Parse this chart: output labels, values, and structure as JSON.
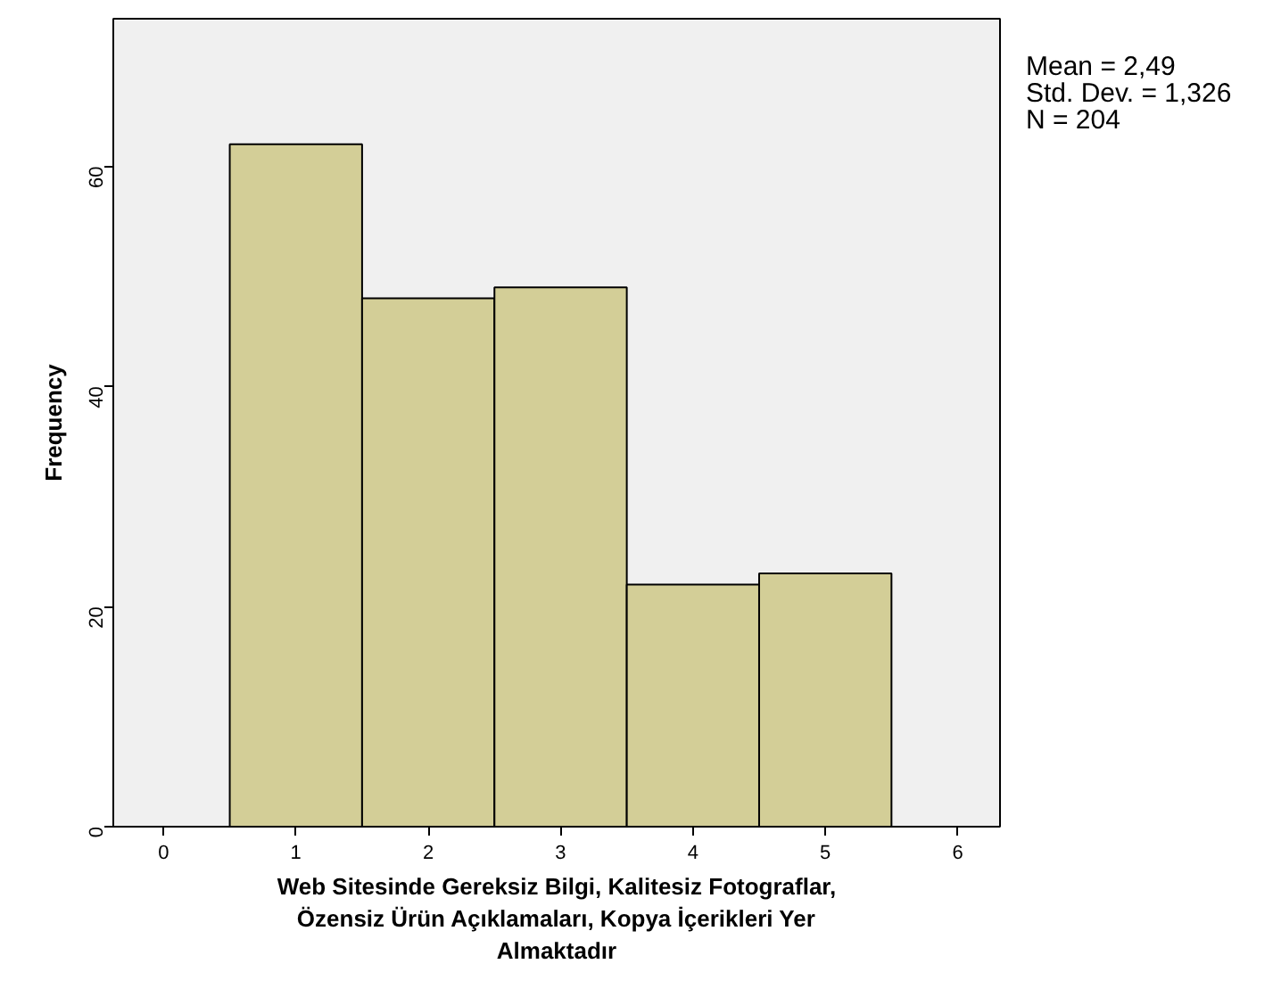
{
  "chart_data": {
    "type": "histogram",
    "xlabel": "Web Sitesinde Gereksiz Bilgi, Kalitesiz Fotograflar,\nÖzensiz Ürün Açıklamaları, Kopya İçerikleri Yer\nAlmaktadır",
    "ylabel": "Frequency",
    "bins": [
      0.5,
      1.5,
      2.5,
      3.5,
      4.5,
      5.5
    ],
    "values": [
      62,
      48,
      49,
      22,
      23
    ],
    "color": "#d3ce97",
    "xlim": [
      -0.38,
      6.32
    ],
    "ylim": [
      0,
      73.4
    ],
    "xticks": [
      0,
      1,
      2,
      3,
      4,
      5,
      6
    ],
    "yticks": [
      0,
      20,
      40,
      60
    ],
    "grid": false,
    "legend": false,
    "annotations": [
      "Mean = 2,49",
      "Std. Dev. = 1,326",
      "N = 204"
    ]
  }
}
